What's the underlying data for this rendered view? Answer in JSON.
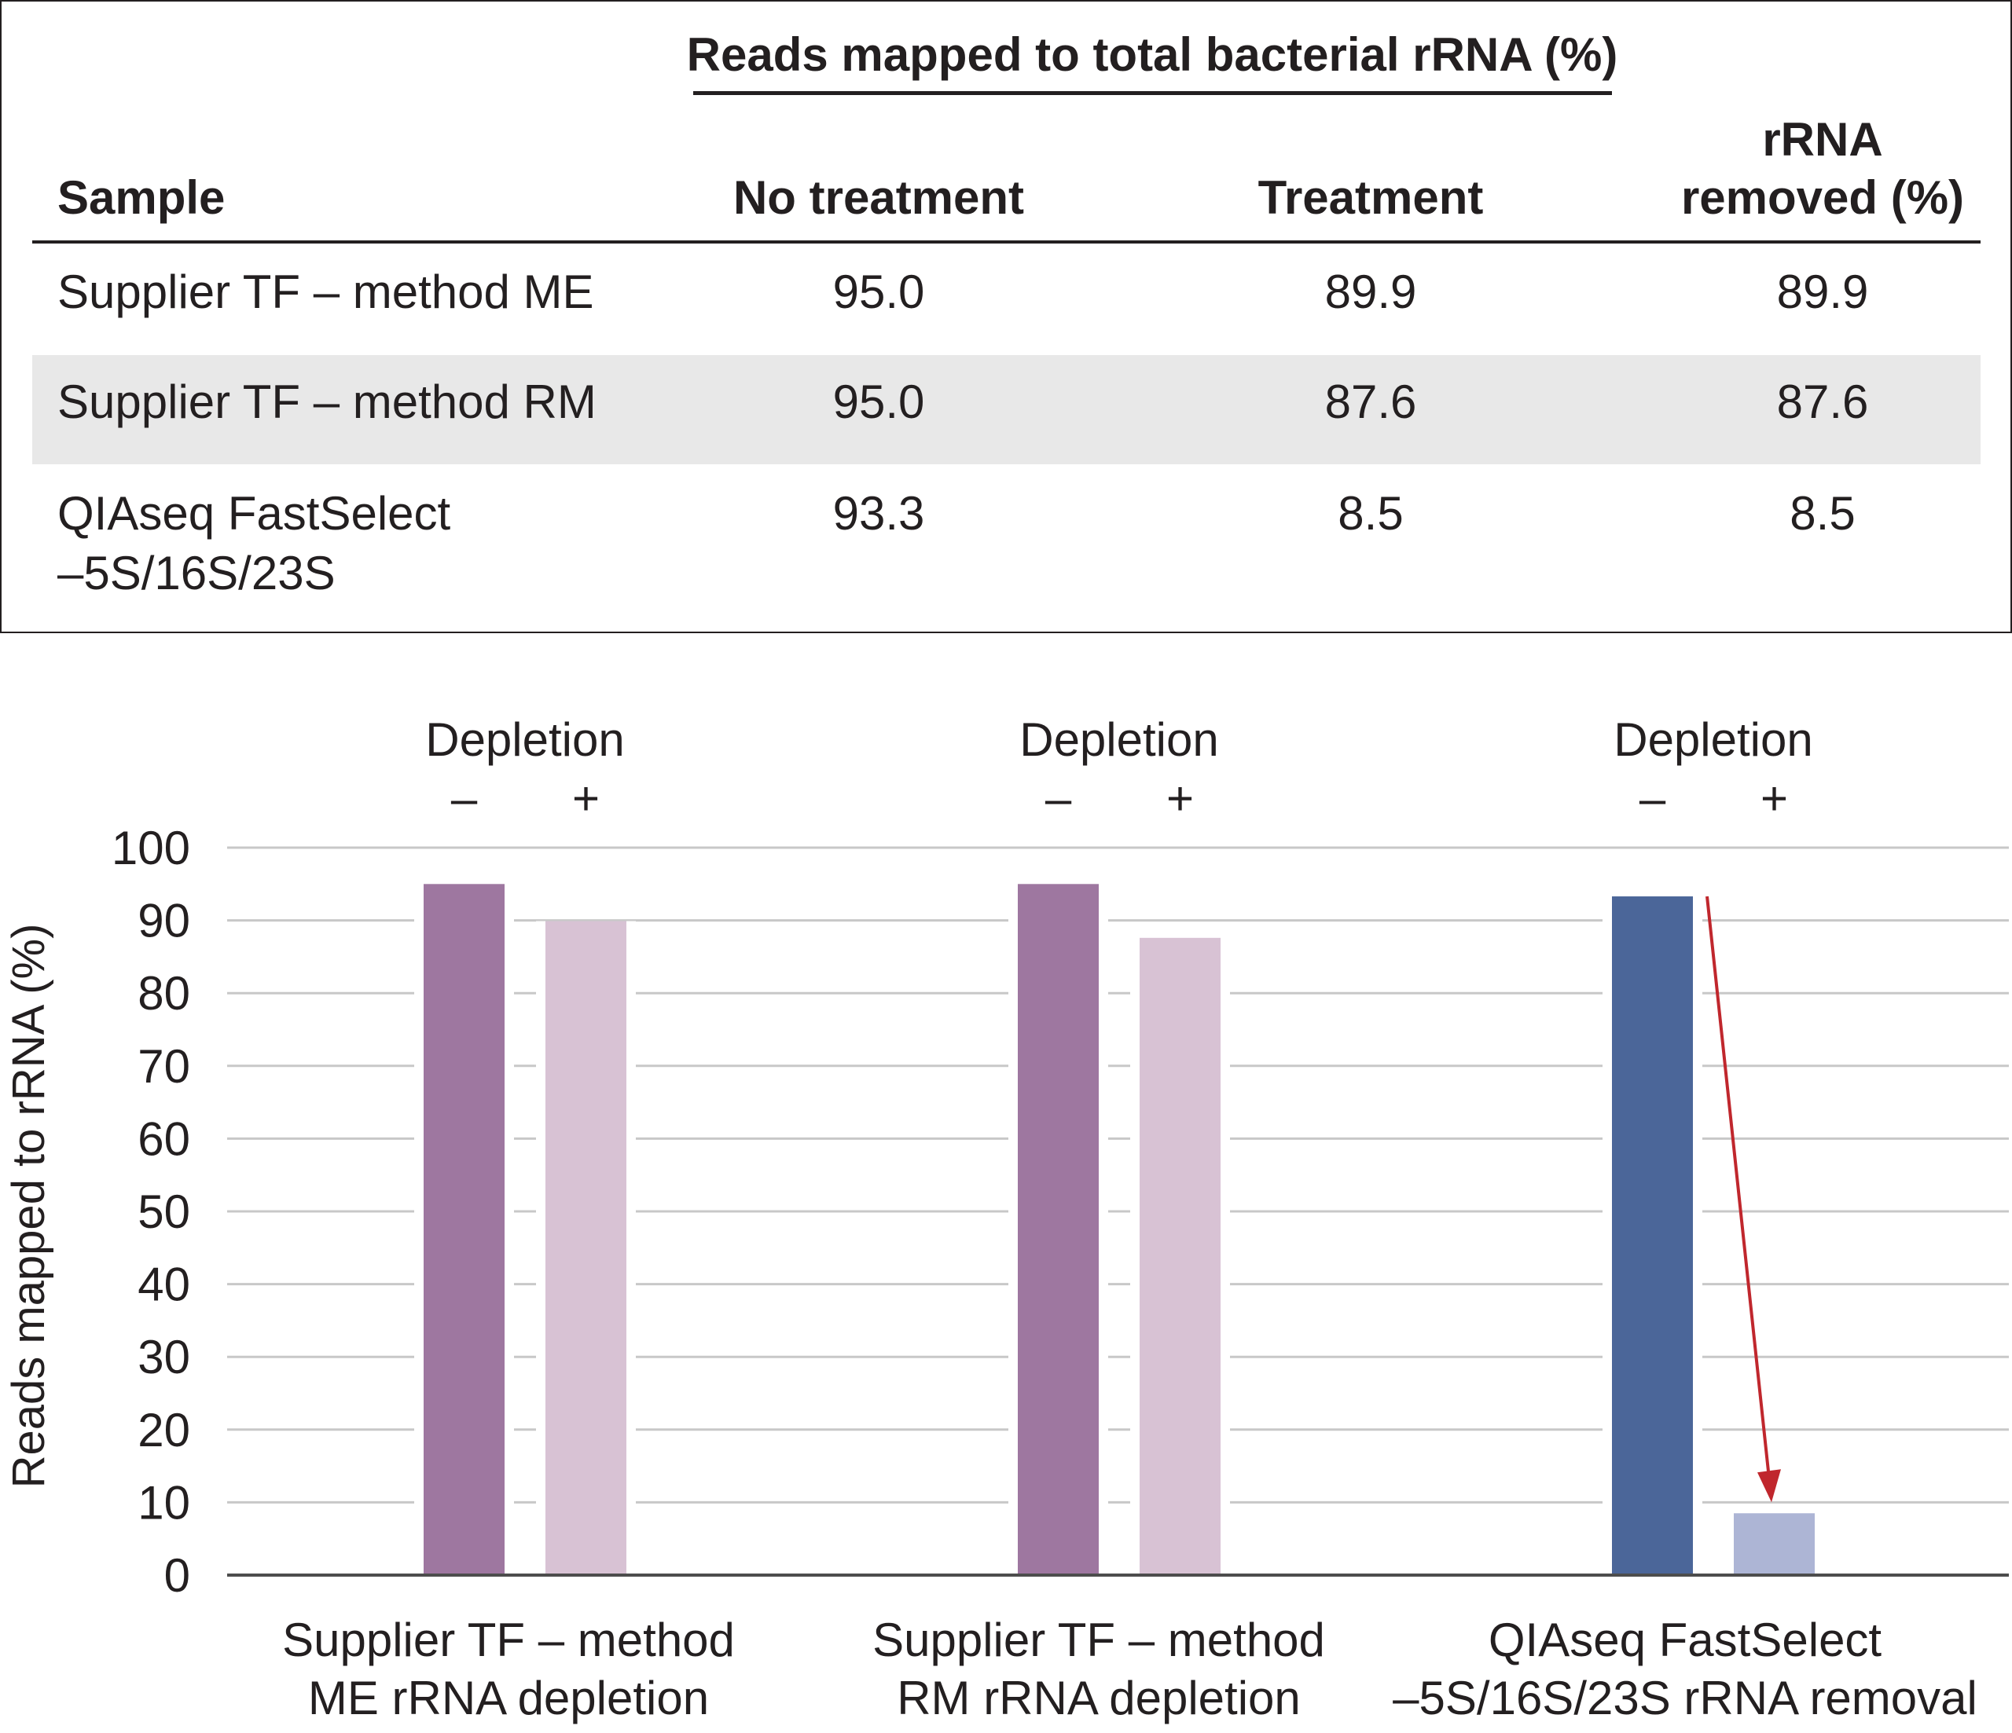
{
  "table": {
    "group_header": "Reads mapped to total bacterial rRNA (%)",
    "columns": [
      "Sample",
      "No treatment",
      "Treatment",
      "rRNA",
      "removed (%)"
    ],
    "rows": [
      {
        "sample": "Supplier TF – method ME",
        "sample2": "",
        "no_treatment": "95.0",
        "treatment": "89.9",
        "removed": "89.9"
      },
      {
        "sample": "Supplier TF – method RM",
        "sample2": "",
        "no_treatment": "95.0",
        "treatment": "87.6",
        "removed": "87.6"
      },
      {
        "sample": "QIAseq FastSelect",
        "sample2": "–5S/16S/23S",
        "no_treatment": "93.3",
        "treatment": "8.5",
        "removed": "8.5"
      }
    ]
  },
  "chart_data": {
    "type": "bar",
    "ylabel": "Reads mapped to rRNA (%)",
    "ylim": [
      0,
      100
    ],
    "yticks": [
      "0",
      "10",
      "20",
      "30",
      "40",
      "50",
      "60",
      "70",
      "80",
      "90",
      "100"
    ],
    "grid": true,
    "group_header": "Depletion",
    "sub_labels": [
      "–",
      "+"
    ],
    "categories": [
      [
        "Supplier TF – method",
        "ME rRNA depletion"
      ],
      [
        "Supplier TF – method",
        "RM rRNA depletion"
      ],
      [
        "QIAseq FastSelect",
        "–5S/16S/23S rRNA removal"
      ]
    ],
    "values": [
      [
        95.0,
        89.9
      ],
      [
        95.0,
        87.6
      ],
      [
        93.3,
        8.5
      ]
    ],
    "colors": [
      [
        "#9e77a0",
        "#d8c2d4"
      ],
      [
        "#9e77a0",
        "#d8c2d4"
      ],
      [
        "#4b6699",
        "#adb5d5"
      ]
    ],
    "annotation": {
      "type": "arrow",
      "from_value": 93.3,
      "to_value": 8.5,
      "group": 2,
      "color": "#c0272d"
    }
  }
}
